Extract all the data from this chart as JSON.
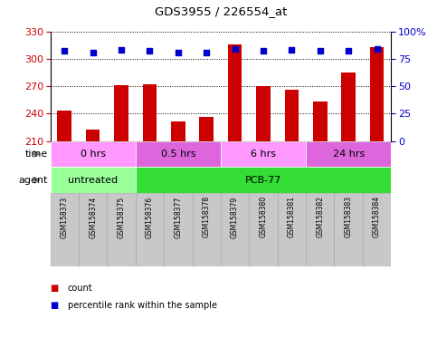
{
  "title": "GDS3955 / 226554_at",
  "samples": [
    "GSM158373",
    "GSM158374",
    "GSM158375",
    "GSM158376",
    "GSM158377",
    "GSM158378",
    "GSM158379",
    "GSM158380",
    "GSM158381",
    "GSM158382",
    "GSM158383",
    "GSM158384"
  ],
  "counts": [
    243,
    222,
    271,
    272,
    231,
    236,
    316,
    270,
    266,
    253,
    285,
    313
  ],
  "percentile_ranks": [
    82,
    81,
    83,
    82,
    81,
    81,
    84,
    82,
    83,
    82,
    82,
    84
  ],
  "ylim_left": [
    210,
    330
  ],
  "ylim_right": [
    0,
    100
  ],
  "yticks_left": [
    210,
    240,
    270,
    300,
    330
  ],
  "yticks_right": [
    0,
    25,
    50,
    75,
    100
  ],
  "bar_color": "#CC0000",
  "dot_color": "#0000CC",
  "bar_width": 0.5,
  "agent_groups": [
    {
      "label": "untreated",
      "start": 0,
      "end": 3,
      "color": "#99FF99"
    },
    {
      "label": "PCB-77",
      "start": 3,
      "end": 12,
      "color": "#33DD33"
    }
  ],
  "time_groups": [
    {
      "label": "0 hrs",
      "start": 0,
      "end": 3,
      "color": "#FF99FF"
    },
    {
      "label": "0.5 hrs",
      "start": 3,
      "end": 6,
      "color": "#DD66DD"
    },
    {
      "label": "6 hrs",
      "start": 6,
      "end": 9,
      "color": "#FF99FF"
    },
    {
      "label": "24 hrs",
      "start": 9,
      "end": 12,
      "color": "#DD66DD"
    }
  ],
  "legend_count_color": "#CC0000",
  "legend_dot_color": "#0000CC",
  "tick_label_bg": "#C8C8C8",
  "tick_label_edge": "#AAAAAA"
}
